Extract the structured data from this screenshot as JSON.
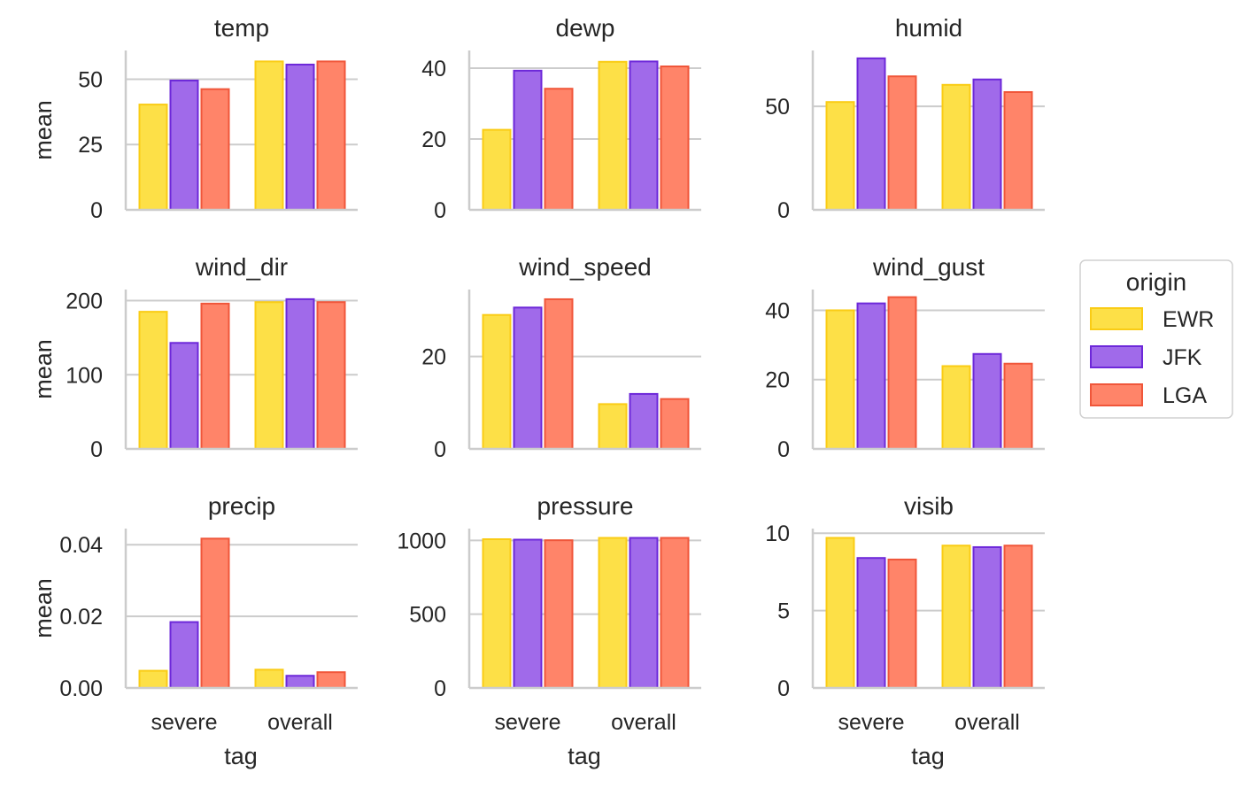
{
  "legend": {
    "title": "origin",
    "items": [
      {
        "label": "EWR",
        "fill": "#FDE047",
        "stroke": "#FACC15"
      },
      {
        "label": "JFK",
        "fill": "#A06AEA",
        "stroke": "#6D28D9"
      },
      {
        "label": "LGA",
        "fill": "#FF8469",
        "stroke": "#F0563A"
      }
    ]
  },
  "chart_data": [
    {
      "type": "bar",
      "title": "temp",
      "categories": [
        "severe",
        "overall"
      ],
      "ylabel": "mean",
      "xlabel": "",
      "ylim": [
        0,
        61
      ],
      "yticks": [
        0,
        25,
        50
      ],
      "ytick_labels": [
        "0",
        "25",
        "50"
      ],
      "series": [
        {
          "name": "EWR",
          "values": [
            40.3,
            56.8
          ]
        },
        {
          "name": "JFK",
          "values": [
            49.5,
            55.6
          ]
        },
        {
          "name": "LGA",
          "values": [
            46.2,
            56.8
          ]
        }
      ]
    },
    {
      "type": "bar",
      "title": "dewp",
      "categories": [
        "severe",
        "overall"
      ],
      "ylabel": "",
      "xlabel": "",
      "ylim": [
        0,
        45
      ],
      "yticks": [
        0,
        20,
        40
      ],
      "ytick_labels": [
        "0",
        "20",
        "40"
      ],
      "series": [
        {
          "name": "EWR",
          "values": [
            22.6,
            41.8
          ]
        },
        {
          "name": "JFK",
          "values": [
            39.3,
            41.9
          ]
        },
        {
          "name": "LGA",
          "values": [
            34.2,
            40.5
          ]
        }
      ]
    },
    {
      "type": "bar",
      "title": "humid",
      "categories": [
        "severe",
        "overall"
      ],
      "ylabel": "",
      "xlabel": "",
      "ylim": [
        0,
        77
      ],
      "yticks": [
        0,
        50
      ],
      "ytick_labels": [
        "0",
        "50"
      ],
      "series": [
        {
          "name": "EWR",
          "values": [
            52.1,
            60.4
          ]
        },
        {
          "name": "JFK",
          "values": [
            73.2,
            63.0
          ]
        },
        {
          "name": "LGA",
          "values": [
            64.5,
            56.9
          ]
        }
      ]
    },
    {
      "type": "bar",
      "title": "wind_dir",
      "categories": [
        "severe",
        "overall"
      ],
      "ylabel": "mean",
      "xlabel": "",
      "ylim": [
        0,
        215
      ],
      "yticks": [
        0,
        100,
        200
      ],
      "ytick_labels": [
        "0",
        "100",
        "200"
      ],
      "series": [
        {
          "name": "EWR",
          "values": [
            185,
            198
          ]
        },
        {
          "name": "JFK",
          "values": [
            143,
            202
          ]
        },
        {
          "name": "LGA",
          "values": [
            196,
            198
          ]
        }
      ]
    },
    {
      "type": "bar",
      "title": "wind_speed",
      "categories": [
        "severe",
        "overall"
      ],
      "ylabel": "",
      "xlabel": "",
      "ylim": [
        0,
        34.5
      ],
      "yticks": [
        0,
        20
      ],
      "ytick_labels": [
        "0",
        "20"
      ],
      "series": [
        {
          "name": "EWR",
          "values": [
            29.0,
            9.7
          ]
        },
        {
          "name": "JFK",
          "values": [
            30.6,
            11.9
          ]
        },
        {
          "name": "LGA",
          "values": [
            32.4,
            10.8
          ]
        }
      ]
    },
    {
      "type": "bar",
      "title": "wind_gust",
      "categories": [
        "severe",
        "overall"
      ],
      "ylabel": "",
      "xlabel": "",
      "ylim": [
        0,
        46
      ],
      "yticks": [
        0,
        20,
        40
      ],
      "ytick_labels": [
        "0",
        "20",
        "40"
      ],
      "series": [
        {
          "name": "EWR",
          "values": [
            40.0,
            23.9
          ]
        },
        {
          "name": "JFK",
          "values": [
            42.0,
            27.4
          ]
        },
        {
          "name": "LGA",
          "values": [
            43.8,
            24.6
          ]
        }
      ]
    },
    {
      "type": "bar",
      "title": "precip",
      "categories": [
        "severe",
        "overall"
      ],
      "ylabel": "mean",
      "xlabel": "tag",
      "ylim": [
        0,
        0.0445
      ],
      "yticks": [
        0,
        0.02,
        0.04
      ],
      "ytick_labels": [
        "0.00",
        "0.02",
        "0.04"
      ],
      "series": [
        {
          "name": "EWR",
          "values": [
            0.0048,
            0.0051
          ]
        },
        {
          "name": "JFK",
          "values": [
            0.0184,
            0.0034
          ]
        },
        {
          "name": "LGA",
          "values": [
            0.0417,
            0.0044
          ]
        }
      ]
    },
    {
      "type": "bar",
      "title": "pressure",
      "categories": [
        "severe",
        "overall"
      ],
      "ylabel": "",
      "xlabel": "tag",
      "ylim": [
        0,
        1080
      ],
      "yticks": [
        0,
        500,
        1000
      ],
      "ytick_labels": [
        "0",
        "500",
        "1000"
      ],
      "series": [
        {
          "name": "EWR",
          "values": [
            1008,
            1017
          ]
        },
        {
          "name": "JFK",
          "values": [
            1005,
            1017
          ]
        },
        {
          "name": "LGA",
          "values": [
            1001,
            1017
          ]
        }
      ]
    },
    {
      "type": "bar",
      "title": "visib",
      "categories": [
        "severe",
        "overall"
      ],
      "ylabel": "",
      "xlabel": "tag",
      "ylim": [
        0,
        10.3
      ],
      "yticks": [
        0,
        5,
        10
      ],
      "ytick_labels": [
        "0",
        "5",
        "10"
      ],
      "series": [
        {
          "name": "EWR",
          "values": [
            9.7,
            9.2
          ]
        },
        {
          "name": "JFK",
          "values": [
            8.4,
            9.1
          ]
        },
        {
          "name": "LGA",
          "values": [
            8.3,
            9.2
          ]
        }
      ]
    }
  ]
}
